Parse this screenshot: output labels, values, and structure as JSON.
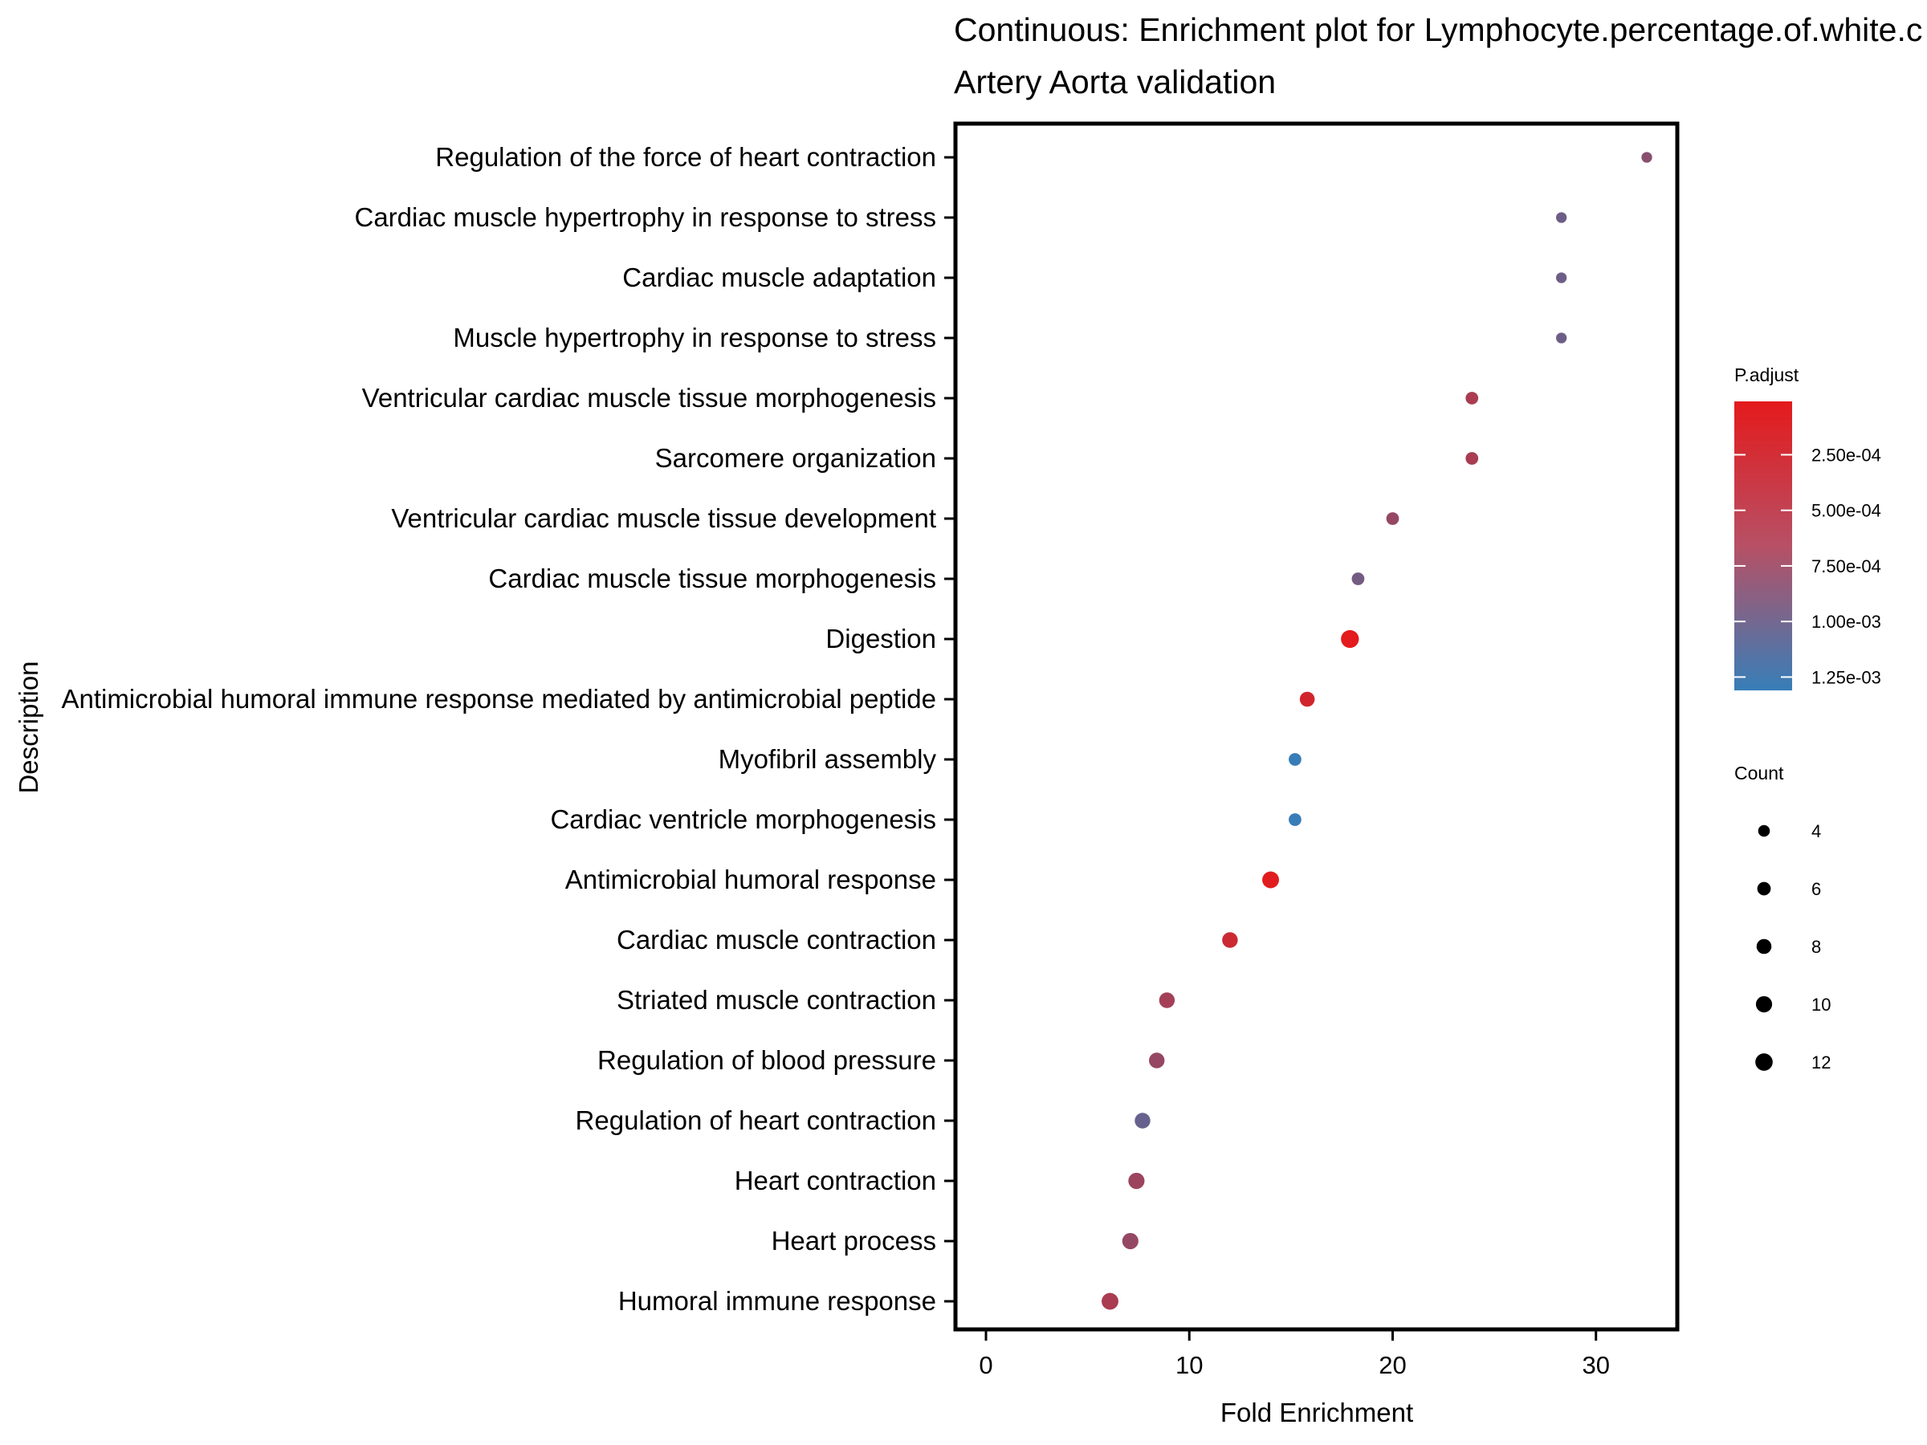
{
  "chart_data": {
    "type": "scatter",
    "title": "Continuous: Enrichment plot for Lymphocyte.percentage.of.white.c",
    "subtitle": "Artery Aorta validation",
    "xlabel": "Fold Enrichment",
    "ylabel": "Description",
    "xlim": [
      -1.5,
      34
    ],
    "xticks": [
      0,
      10,
      20,
      30
    ],
    "grid": false,
    "legend_position": "right",
    "color_scale": {
      "title": "P.adjust",
      "low_color": "#e41a1c",
      "high_color": "#377eb8",
      "range": [
        1e-05,
        0.00131
      ],
      "ticks": [
        0.00025,
        0.0005,
        0.00075,
        0.001,
        0.00125
      ],
      "tick_labels": [
        "2.50e-04",
        "5.00e-04",
        "7.50e-04",
        "1.00e-03",
        "1.25e-03"
      ]
    },
    "size_scale": {
      "title": "Count",
      "values": [
        4,
        6,
        8,
        10,
        12
      ]
    },
    "points": [
      {
        "description": "Regulation of the force of heart contraction",
        "fold_enrichment": 32.5,
        "count": 3,
        "p_adjust": 0.0007
      },
      {
        "description": "Cardiac muscle hypertrophy in response to stress",
        "fold_enrichment": 28.3,
        "count": 3,
        "p_adjust": 0.0009
      },
      {
        "description": "Cardiac muscle adaptation",
        "fold_enrichment": 28.3,
        "count": 3,
        "p_adjust": 0.0009
      },
      {
        "description": "Muscle hypertrophy in response to stress",
        "fold_enrichment": 28.3,
        "count": 3,
        "p_adjust": 0.0009
      },
      {
        "description": "Ventricular cardiac muscle tissue morphogenesis",
        "fold_enrichment": 23.9,
        "count": 5,
        "p_adjust": 0.00045
      },
      {
        "description": "Sarcomere organization",
        "fold_enrichment": 23.9,
        "count": 5,
        "p_adjust": 0.00045
      },
      {
        "description": "Ventricular cardiac muscle tissue development",
        "fold_enrichment": 20.0,
        "count": 5,
        "p_adjust": 0.0006
      },
      {
        "description": "Cardiac muscle tissue morphogenesis",
        "fold_enrichment": 18.3,
        "count": 5,
        "p_adjust": 0.00085
      },
      {
        "description": "Digestion",
        "fold_enrichment": 17.9,
        "count": 13,
        "p_adjust": 2e-05
      },
      {
        "description": "Antimicrobial humoral immune response mediated by antimicrobial peptide",
        "fold_enrichment": 15.8,
        "count": 8,
        "p_adjust": 0.00015
      },
      {
        "description": "Myofibril assembly",
        "fold_enrichment": 15.2,
        "count": 5,
        "p_adjust": 0.0013
      },
      {
        "description": "Cardiac ventricle morphogenesis",
        "fold_enrichment": 15.2,
        "count": 5,
        "p_adjust": 0.0013
      },
      {
        "description": "Antimicrobial humoral response",
        "fold_enrichment": 14.0,
        "count": 11,
        "p_adjust": 3e-05
      },
      {
        "description": "Cardiac muscle contraction",
        "fold_enrichment": 12.0,
        "count": 9,
        "p_adjust": 0.0002
      },
      {
        "description": "Striated muscle contraction",
        "fold_enrichment": 8.9,
        "count": 9,
        "p_adjust": 0.0005
      },
      {
        "description": "Regulation of blood pressure",
        "fold_enrichment": 8.4,
        "count": 9,
        "p_adjust": 0.0006
      },
      {
        "description": "Regulation of heart contraction",
        "fold_enrichment": 7.7,
        "count": 9,
        "p_adjust": 0.00095
      },
      {
        "description": "Heart contraction",
        "fold_enrichment": 7.4,
        "count": 10,
        "p_adjust": 0.00055
      },
      {
        "description": "Heart process",
        "fold_enrichment": 7.1,
        "count": 10,
        "p_adjust": 0.0006
      },
      {
        "description": "Humoral immune response",
        "fold_enrichment": 6.1,
        "count": 11,
        "p_adjust": 0.00045
      }
    ]
  }
}
